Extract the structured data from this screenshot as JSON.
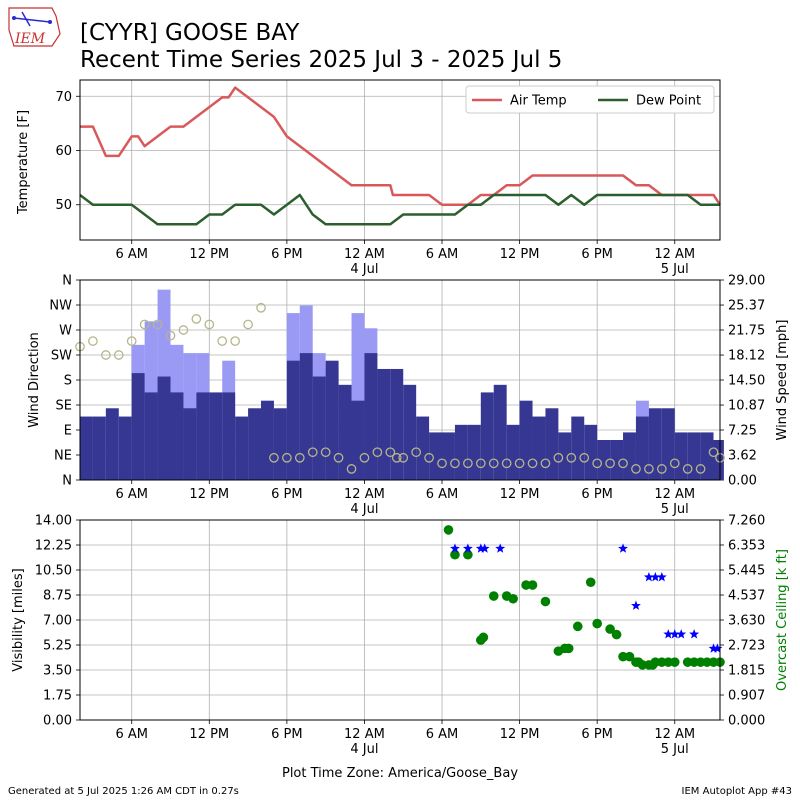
{
  "header": {
    "logo_text": "IEM",
    "title_line1": "[CYYR] GOOSE BAY",
    "title_line2": "Recent Time Series 2025 Jul 3 - 2025 Jul 5"
  },
  "footer": {
    "generated": "Generated at 5 Jul 2025 1:26 AM CDT in 0.27s",
    "app": "IEM Autoplot App #43"
  },
  "time_axis": {
    "xlabel": "Plot Time Zone: America/Goose_Bay",
    "start_hour": 2,
    "end_hour": 51.5,
    "ticks": [
      {
        "hour": 6,
        "label": "6 AM",
        "sub": ""
      },
      {
        "hour": 12,
        "label": "12 PM",
        "sub": ""
      },
      {
        "hour": 18,
        "label": "6 PM",
        "sub": ""
      },
      {
        "hour": 24,
        "label": "12 AM",
        "sub": "4 Jul"
      },
      {
        "hour": 30,
        "label": "6 AM",
        "sub": ""
      },
      {
        "hour": 36,
        "label": "12 PM",
        "sub": ""
      },
      {
        "hour": 42,
        "label": "6 PM",
        "sub": ""
      },
      {
        "hour": 48,
        "label": "12 AM",
        "sub": "5 Jul"
      }
    ]
  },
  "colors": {
    "air_temp": "#d9595b",
    "dew_point": "#2d5e2d",
    "wind_speed": "#363693",
    "wind_gust": "#9a9af5",
    "wind_dir": "#b5b58a",
    "visibility": "#0000ff",
    "ceiling": "#008000",
    "grid": "#b0b0b0"
  },
  "chart_data": [
    {
      "type": "line",
      "ylabel": "Temperature [F]",
      "ylim": [
        43.5,
        73
      ],
      "yticks": [
        50,
        60,
        70
      ],
      "grid": true,
      "legend_placement": "top-right",
      "series": [
        {
          "name": "Air Temp",
          "x": [
            2,
            3,
            4,
            5,
            6,
            6.5,
            7,
            8,
            9,
            10,
            11,
            12,
            13,
            13.5,
            14,
            15,
            16,
            17,
            18,
            19,
            20,
            21,
            22,
            23,
            24,
            25,
            26,
            26.2,
            27,
            28,
            29,
            30,
            31,
            32,
            33,
            34,
            35,
            36,
            37,
            38,
            39,
            40,
            41,
            42,
            43,
            44,
            45,
            46,
            47,
            48,
            49,
            50,
            51,
            51.5
          ],
          "y": [
            64.4,
            64.4,
            59,
            59,
            62.6,
            62.6,
            60.8,
            62.6,
            64.4,
            64.4,
            66.2,
            68,
            69.8,
            69.8,
            71.6,
            69.8,
            68,
            66.2,
            62.6,
            60.8,
            59,
            57.2,
            55.4,
            53.6,
            53.6,
            53.6,
            53.6,
            51.8,
            51.8,
            51.8,
            51.8,
            50,
            50,
            50,
            51.8,
            51.8,
            53.6,
            53.6,
            55.4,
            55.4,
            55.4,
            55.4,
            55.4,
            55.4,
            55.4,
            55.4,
            53.6,
            53.6,
            51.8,
            51.8,
            51.8,
            51.8,
            51.8,
            50
          ]
        },
        {
          "name": "Dew Point",
          "x": [
            2,
            3,
            4,
            5,
            6,
            7,
            8,
            9,
            10,
            11,
            12,
            13,
            14,
            15,
            16,
            17,
            18,
            19,
            20,
            21,
            22,
            23,
            24,
            25,
            26,
            27,
            28,
            29,
            30,
            31,
            32,
            33,
            34,
            35,
            36,
            37,
            38,
            39,
            40,
            41,
            42,
            43,
            44,
            45,
            46,
            47,
            48,
            49,
            50,
            51,
            51.5
          ],
          "y": [
            51.8,
            50,
            50,
            50,
            50,
            48.2,
            46.4,
            46.4,
            46.4,
            46.4,
            48.2,
            48.2,
            50,
            50,
            50,
            48.2,
            50,
            51.8,
            48.2,
            46.4,
            46.4,
            46.4,
            46.4,
            46.4,
            46.4,
            48.2,
            48.2,
            48.2,
            48.2,
            48.2,
            50,
            50,
            51.8,
            51.8,
            51.8,
            51.8,
            51.8,
            50,
            51.8,
            50,
            51.8,
            51.8,
            51.8,
            51.8,
            51.8,
            51.8,
            51.8,
            51.8,
            50,
            50,
            50
          ]
        }
      ]
    },
    {
      "type": "bar",
      "ylabel": "Wind Direction",
      "y2label": "Wind Speed [mph]",
      "yticks": [
        0,
        45,
        90,
        135,
        180,
        225,
        270,
        315,
        360
      ],
      "ytick_labels": [
        "N",
        "NE",
        "E",
        "SE",
        "S",
        "SW",
        "W",
        "NW",
        "N"
      ],
      "y2lim": [
        0,
        29
      ],
      "y2ticks": [
        0,
        3.62,
        7.25,
        10.87,
        14.5,
        18.12,
        21.75,
        25.37,
        29
      ],
      "y2tick_labels": [
        "0.00",
        "3.62",
        "7.25",
        "10.87",
        "14.50",
        "18.12",
        "21.75",
        "25.37",
        "29.00"
      ],
      "grid": true,
      "speed_series": {
        "name": "Wind Speed",
        "x": [
          2.5,
          3.5,
          4.5,
          5.5,
          6.5,
          7.5,
          8.5,
          9.5,
          10.5,
          11.5,
          12.5,
          13.5,
          14.5,
          15.5,
          16.5,
          17.5,
          18.5,
          19.5,
          20.5,
          21.5,
          22.5,
          23.5,
          24.5,
          25.5,
          26.5,
          27.5,
          28.5,
          29.5,
          30.5,
          31.5,
          32.5,
          33.5,
          34.5,
          35.5,
          36.5,
          37.5,
          38.5,
          39.5,
          40.5,
          41.5,
          42.5,
          43.5,
          44.5,
          45.5,
          46.5,
          47.5,
          48.5,
          49.5,
          50.5,
          51.3
        ],
        "values": [
          9.2,
          9.2,
          10.4,
          9.2,
          15.5,
          12.7,
          15,
          12.7,
          10.4,
          12.7,
          12.7,
          12.7,
          9.2,
          10.4,
          11.5,
          10.4,
          17.3,
          18.4,
          15,
          17.3,
          13.8,
          11.5,
          18.4,
          16.1,
          16.1,
          13.8,
          9.2,
          6.9,
          6.9,
          8,
          8,
          12.7,
          13.8,
          8,
          11.5,
          9.2,
          10.4,
          6.9,
          9.2,
          8,
          5.8,
          5.8,
          6.9,
          9.2,
          10.4,
          10.4,
          6.9,
          6.9,
          6.9,
          5.8
        ]
      },
      "gust_series": {
        "name": "Wind Gust",
        "x": [
          6.5,
          7.5,
          8.5,
          9.5,
          10.5,
          11.5,
          13.5,
          18.5,
          19.5,
          20.5,
          21.5,
          23.5,
          24.5,
          45.5
        ],
        "values": [
          19.6,
          23,
          27.6,
          19.6,
          18.4,
          18.4,
          17.3,
          24.2,
          25.3,
          18.4,
          16.1,
          24.2,
          22,
          11.5
        ]
      },
      "direction_series": {
        "name": "Wind Direction",
        "x": [
          2,
          3,
          4,
          5,
          6,
          7,
          8,
          9,
          10,
          11,
          12,
          13,
          14,
          15,
          16,
          17,
          18,
          19,
          20,
          21,
          22,
          23,
          24,
          25,
          26,
          26.5,
          27,
          28,
          29,
          30,
          31,
          32,
          33,
          34,
          35,
          36,
          37,
          38,
          39,
          40,
          41,
          42,
          43,
          44,
          45,
          46,
          47,
          48,
          49,
          50,
          51,
          51.5
        ],
        "values": [
          240,
          250,
          225,
          225,
          250,
          280,
          280,
          260,
          270,
          290,
          280,
          250,
          250,
          280,
          310,
          40,
          40,
          40,
          50,
          50,
          40,
          20,
          40,
          50,
          50,
          40,
          40,
          50,
          40,
          30,
          30,
          30,
          30,
          30,
          30,
          30,
          30,
          30,
          40,
          40,
          40,
          30,
          30,
          30,
          20,
          20,
          20,
          30,
          20,
          20,
          50,
          40
        ]
      }
    },
    {
      "type": "scatter",
      "ylabel": "Visibility [miles]",
      "y2label": "Overcast Ceiling [k ft]",
      "ylim": [
        0,
        14
      ],
      "yticks": [
        0,
        1.75,
        3.5,
        5.25,
        7,
        8.75,
        10.5,
        12.25,
        14
      ],
      "ytick_labels": [
        "0.00",
        "1.75",
        "3.50",
        "5.25",
        "7.00",
        "8.75",
        "10.50",
        "12.25",
        "14.00"
      ],
      "y2lim": [
        0,
        7.26
      ],
      "y2ticks": [
        0,
        0.907,
        1.815,
        2.723,
        3.63,
        4.537,
        5.445,
        6.353,
        7.26
      ],
      "y2tick_labels": [
        "0.000",
        "0.907",
        "1.815",
        "2.723",
        "3.630",
        "4.537",
        "5.445",
        "6.353",
        "7.260"
      ],
      "grid": true,
      "visibility_series": {
        "name": "Visibility",
        "x": [
          31,
          32,
          33,
          33.3,
          34.5,
          44,
          45,
          46,
          46.5,
          47,
          47.5,
          48,
          48.5,
          49.5,
          51,
          51.3
        ],
        "values": [
          12,
          12,
          12,
          12,
          12,
          12,
          8,
          10,
          10,
          10,
          6,
          6,
          6,
          6,
          5,
          5
        ]
      },
      "ceiling_series": {
        "name": "Overcast Ceiling",
        "x": [
          30.5,
          31,
          32,
          33,
          33.2,
          34,
          35,
          35.5,
          36.5,
          37,
          38,
          39,
          39.5,
          39.8,
          40.5,
          41.5,
          42,
          43,
          43.5,
          44,
          44.5,
          45,
          45.2,
          45.5,
          46,
          46.3,
          46.5,
          47,
          47.5,
          48,
          49,
          49.5,
          50,
          50.5,
          51,
          51.5
        ],
        "values": [
          6.9,
          6,
          6,
          2.9,
          3,
          4.5,
          4.5,
          4.4,
          4.9,
          4.9,
          4.3,
          2.5,
          2.6,
          2.6,
          3.4,
          5,
          3.5,
          3.3,
          3.1,
          2.3,
          2.3,
          2.1,
          2.1,
          2,
          2,
          2,
          2.1,
          2.1,
          2.1,
          2.1,
          2.1,
          2.1,
          2.1,
          2.1,
          2.1,
          2.1
        ]
      }
    }
  ]
}
